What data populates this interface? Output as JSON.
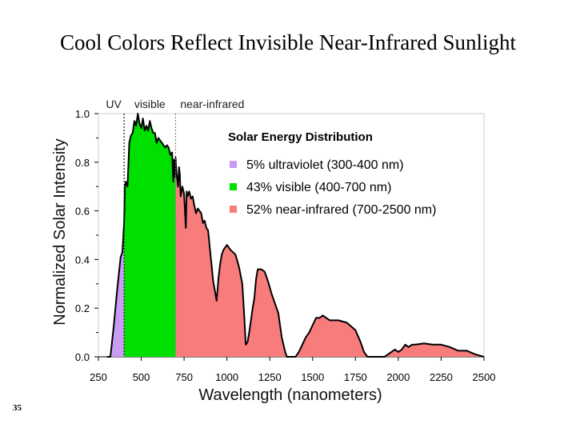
{
  "slide": {
    "title": "Cool Colors Reflect Invisible Near-Infrared Sunlight",
    "number": "35"
  },
  "chart_data": {
    "type": "area",
    "title": "Solar Energy Distribution",
    "xlabel": "Wavelength (nanometers)",
    "ylabel": "Normalized Solar Intensity",
    "xlim": [
      250,
      2500
    ],
    "ylim": [
      0,
      1.0
    ],
    "xticks": [
      "250",
      "500",
      "750",
      "1000",
      "1250",
      "1500",
      "1750",
      "2000",
      "2250",
      "2500"
    ],
    "yticks": [
      "0.0",
      "0.2",
      "0.4",
      "0.6",
      "0.8",
      "1.0"
    ],
    "region_labels": [
      "UV",
      "visible",
      "near-infrared"
    ],
    "region_boundaries": [
      400,
      700
    ],
    "legend": [
      {
        "label": "5% ultraviolet (300-400 nm)",
        "color": "#c89cf2"
      },
      {
        "label": "43% visible (400-700 nm)",
        "color": "#00e000"
      },
      {
        "label": "52% near-infrared (700-2500 nm)",
        "color": "#f87c7c"
      }
    ],
    "series": [
      {
        "x": [
          300,
          320,
          340,
          360,
          380,
          390,
          400,
          405,
          410,
          420,
          430,
          440,
          450,
          460,
          470,
          480,
          490,
          500,
          510,
          520,
          530,
          540,
          550,
          560,
          570,
          580,
          590,
          600,
          610,
          620,
          630,
          640,
          650,
          660,
          670,
          680,
          687,
          690,
          695,
          700,
          705,
          710,
          715,
          720,
          725,
          730,
          740,
          750,
          760,
          765,
          770,
          780,
          790,
          800,
          810,
          820,
          830,
          840,
          850,
          860,
          870,
          880,
          890,
          900,
          910,
          920,
          930,
          940,
          950,
          960,
          970,
          980,
          990,
          1000,
          1020,
          1050,
          1070,
          1090,
          1100,
          1110,
          1120,
          1130,
          1140,
          1150,
          1160,
          1170,
          1180,
          1200,
          1220,
          1240,
          1260,
          1280,
          1300,
          1320,
          1340,
          1350,
          1360,
          1380,
          1400,
          1420,
          1440,
          1460,
          1480,
          1500,
          1520,
          1540,
          1560,
          1580,
          1600,
          1650,
          1700,
          1750,
          1780,
          1800,
          1820,
          1840,
          1860,
          1880,
          1900,
          1920,
          1940,
          1960,
          1980,
          2000,
          2020,
          2040,
          2060,
          2080,
          2100,
          2150,
          2200,
          2250,
          2300,
          2350,
          2400,
          2450,
          2500
        ],
        "y": [
          0.0,
          0.0,
          0.13,
          0.28,
          0.41,
          0.43,
          0.55,
          0.7,
          0.72,
          0.7,
          0.88,
          0.91,
          0.92,
          0.97,
          0.95,
          1.0,
          0.96,
          0.94,
          0.98,
          0.93,
          0.95,
          0.93,
          0.97,
          0.94,
          0.92,
          0.92,
          0.88,
          0.9,
          0.89,
          0.88,
          0.87,
          0.86,
          0.87,
          0.86,
          0.83,
          0.84,
          0.72,
          0.81,
          0.74,
          0.82,
          0.76,
          0.73,
          0.7,
          0.78,
          0.75,
          0.66,
          0.7,
          0.67,
          0.53,
          0.68,
          0.66,
          0.68,
          0.65,
          0.66,
          0.62,
          0.59,
          0.61,
          0.6,
          0.59,
          0.55,
          0.56,
          0.53,
          0.52,
          0.45,
          0.38,
          0.31,
          0.27,
          0.23,
          0.32,
          0.38,
          0.42,
          0.44,
          0.45,
          0.46,
          0.44,
          0.42,
          0.37,
          0.3,
          0.18,
          0.05,
          0.06,
          0.1,
          0.15,
          0.2,
          0.24,
          0.32,
          0.36,
          0.36,
          0.35,
          0.31,
          0.26,
          0.22,
          0.18,
          0.08,
          0.02,
          0.0,
          0.0,
          0.0,
          0.0,
          0.02,
          0.05,
          0.08,
          0.1,
          0.13,
          0.16,
          0.16,
          0.17,
          0.16,
          0.15,
          0.15,
          0.14,
          0.11,
          0.06,
          0.02,
          0.0,
          0.0,
          0.0,
          0.0,
          0.0,
          0.0,
          0.01,
          0.02,
          0.03,
          0.02,
          0.03,
          0.05,
          0.04,
          0.05,
          0.05,
          0.055,
          0.05,
          0.05,
          0.04,
          0.025,
          0.025,
          0.01,
          0.0
        ]
      }
    ]
  }
}
